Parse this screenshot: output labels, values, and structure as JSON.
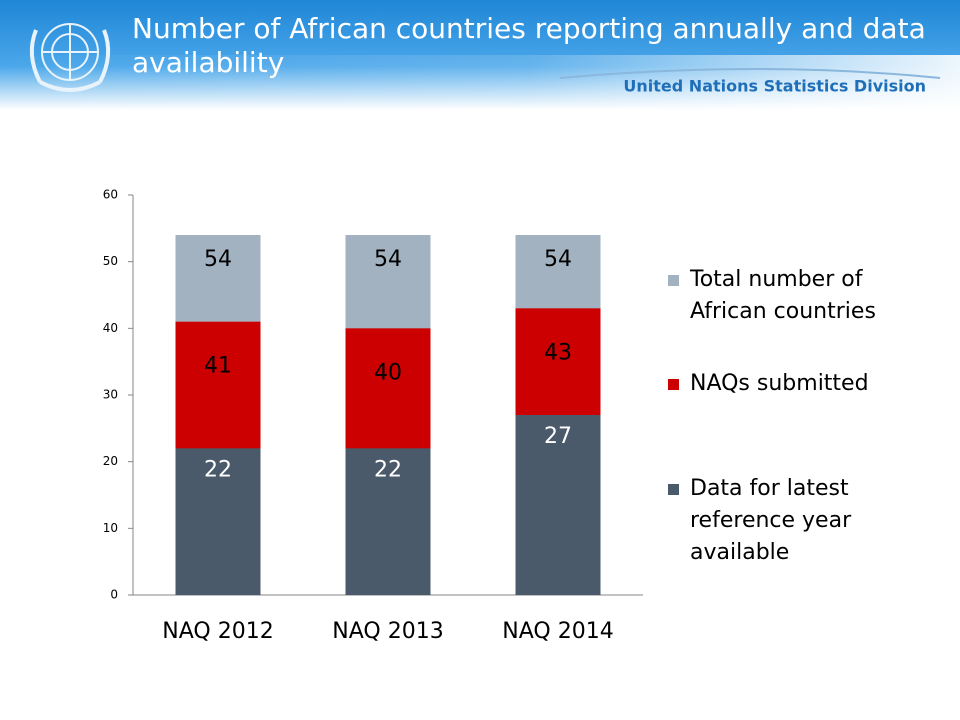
{
  "header": {
    "organization": "United Nations Statistics Division"
  },
  "chart_data": {
    "type": "bar",
    "title": "Number of African countries reporting annually and data availability",
    "categories": [
      "NAQ 2012",
      "NAQ 2013",
      "NAQ 2014"
    ],
    "series": [
      {
        "name": "Total number of African countries",
        "color": "#a3b2c1",
        "values": [
          54,
          54,
          54
        ]
      },
      {
        "name": "NAQs submitted",
        "color": "#cc0000",
        "values": [
          41,
          40,
          43
        ]
      },
      {
        "name": "Data for latest reference year available",
        "color": "#4a5a6b",
        "values": [
          22,
          22,
          27
        ]
      }
    ],
    "overlap": true,
    "ylim": [
      0,
      60
    ],
    "yticks": [
      0,
      10,
      20,
      30,
      40,
      50,
      60
    ],
    "grid": false,
    "legend": "right"
  }
}
